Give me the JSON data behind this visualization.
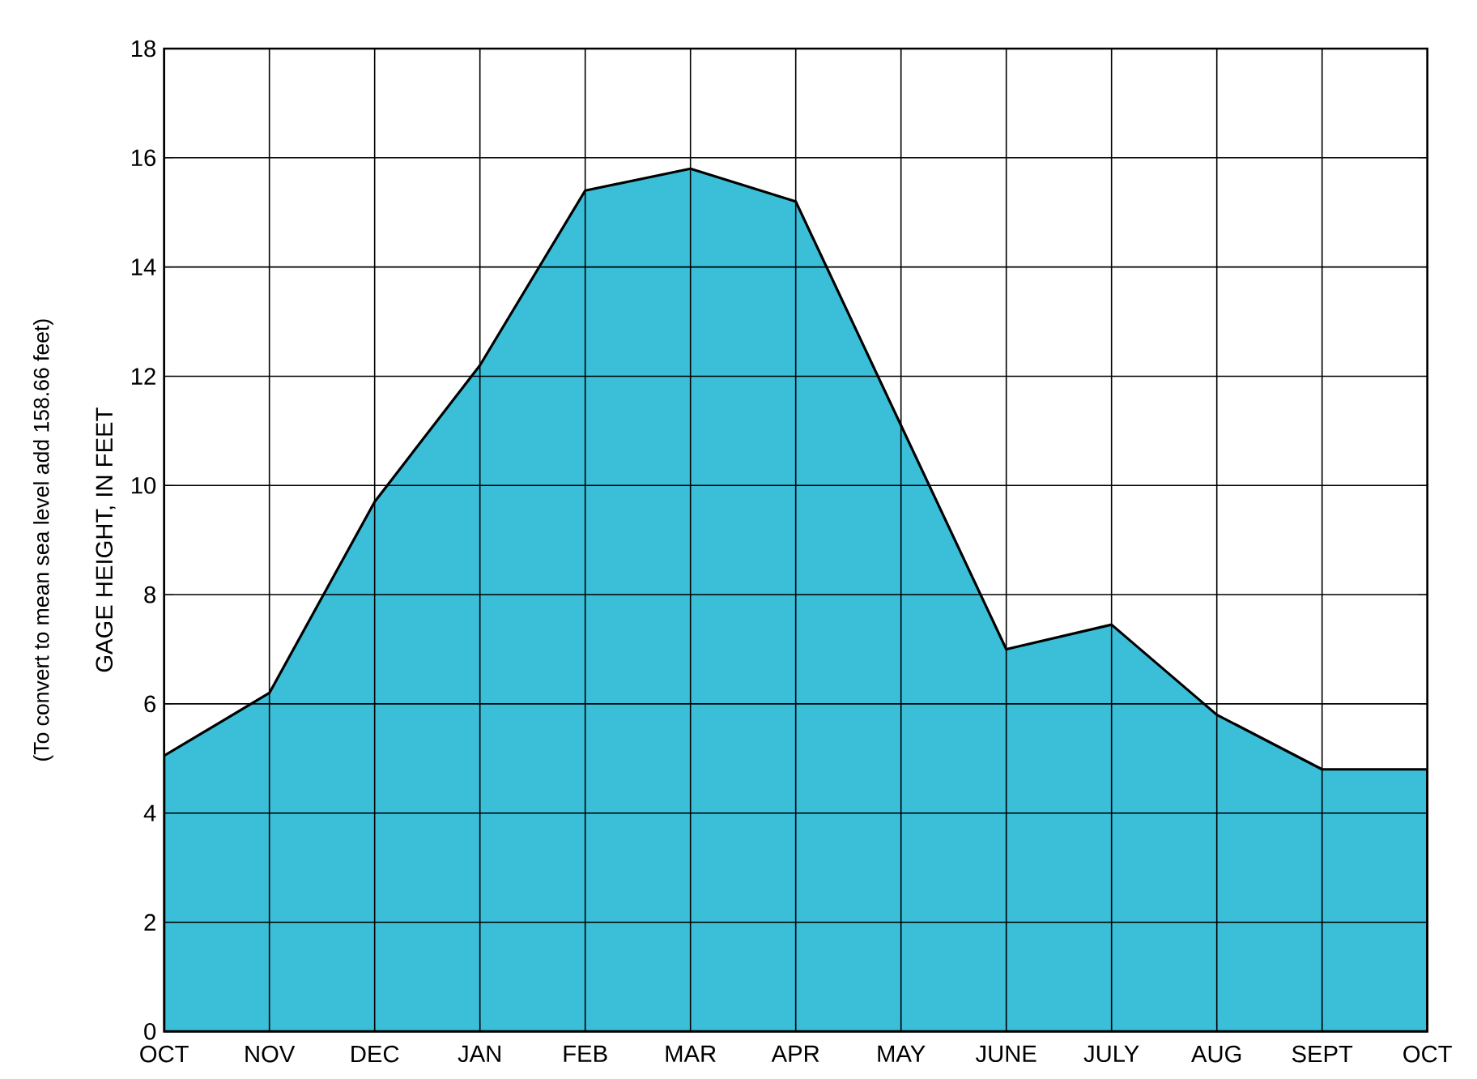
{
  "chart_data": {
    "type": "area",
    "ylabel": "GAGE HEIGHT, IN FEET",
    "annotations": [
      "(To convert to mean sea level add 158.66 feet)"
    ],
    "categories": [
      "OCT",
      "NOV",
      "DEC",
      "JAN",
      "FEB",
      "MAR",
      "APR",
      "MAY",
      "JUNE",
      "JULY",
      "AUG",
      "SEPT",
      "OCT"
    ],
    "values": [
      5.05,
      6.2,
      9.7,
      12.2,
      15.4,
      15.8,
      15.2,
      11.1,
      7.0,
      7.45,
      5.8,
      4.8,
      4.8
    ],
    "color": "#3bbfd9",
    "ylim": [
      0,
      18
    ],
    "yticks": [
      0,
      2,
      4,
      6,
      8,
      10,
      12,
      14,
      16,
      18
    ],
    "grid": true
  }
}
